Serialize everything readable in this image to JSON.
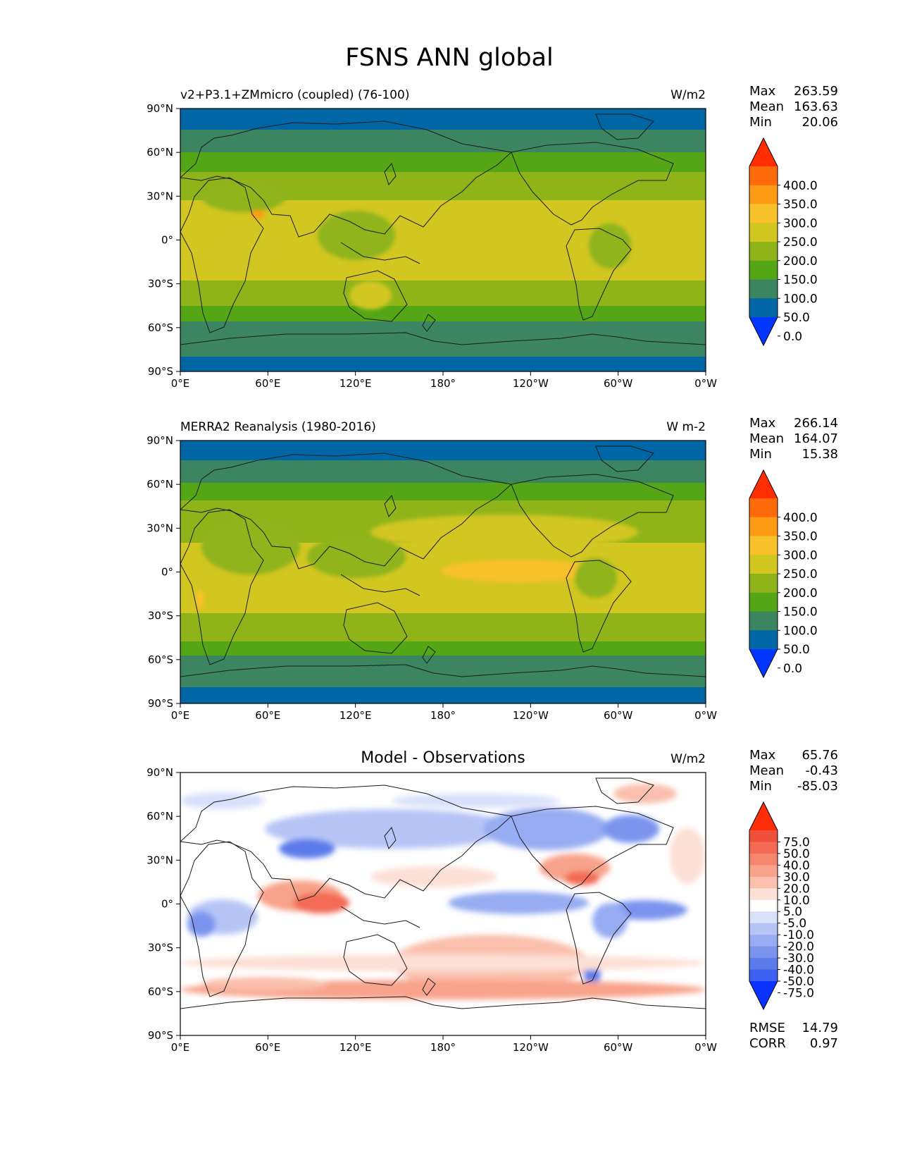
{
  "title": "FSNS ANN global",
  "longitude_ticks": [
    "0°E",
    "60°E",
    "120°E",
    "180°",
    "120°W",
    "60°W",
    "0°W"
  ],
  "latitude_ticks": [
    "90°N",
    "60°N",
    "30°N",
    "0°",
    "30°S",
    "60°S",
    "90°S"
  ],
  "stat_labels": {
    "max": "Max",
    "mean": "Mean",
    "min": "Min",
    "rmse": "RMSE",
    "corr": "CORR"
  },
  "panels": [
    {
      "left_title": "v2+P3.1+ZMmicro (coupled) (76-100)",
      "center_title": "",
      "units": "W/m2",
      "stats": {
        "max": "263.59",
        "mean": "163.63",
        "min": "20.06"
      },
      "colorbar": {
        "labels": [
          "400.0",
          "350.0",
          "300.0",
          "250.0",
          "200.0",
          "150.0",
          "100.0",
          "50.0",
          "0.0"
        ],
        "colors": [
          "#ff2d00",
          "#ff6a0a",
          "#ff9a14",
          "#f8c12c",
          "#d2c621",
          "#8fb41a",
          "#55a616",
          "#3b8561",
          "#0066a6",
          "#0036ff"
        ]
      }
    },
    {
      "left_title": "MERRA2 Reanalysis (1980-2016)",
      "center_title": "",
      "units": "W m-2",
      "stats": {
        "max": "266.14",
        "mean": "164.07",
        "min": "15.38"
      },
      "colorbar": {
        "labels": [
          "400.0",
          "350.0",
          "300.0",
          "250.0",
          "200.0",
          "150.0",
          "100.0",
          "50.0",
          "0.0"
        ],
        "colors": [
          "#ff2d00",
          "#ff6a0a",
          "#ff9a14",
          "#f8c12c",
          "#d2c621",
          "#8fb41a",
          "#55a616",
          "#3b8561",
          "#0066a6",
          "#0036ff"
        ]
      }
    },
    {
      "left_title": "",
      "center_title": "Model - Observations",
      "units": "W/m2",
      "stats": {
        "max": "65.76",
        "mean": "-0.43",
        "min": "-85.03",
        "rmse": "14.79",
        "corr": "0.97"
      },
      "colorbar": {
        "labels": [
          "75.0",
          "50.0",
          "40.0",
          "30.0",
          "20.0",
          "10.0",
          "5.0",
          "-5.0",
          "-10.0",
          "-20.0",
          "-30.0",
          "-40.0",
          "-50.0",
          "-75.0"
        ],
        "colors": [
          "#ff2c08",
          "#f04f3a",
          "#f36b55",
          "#f6876f",
          "#f8a38b",
          "#fac0ad",
          "#fde0d6",
          "#ffffff",
          "#d8e0fa",
          "#b6c5f6",
          "#97acf2",
          "#7a94ee",
          "#5c7beb",
          "#3d5ff2",
          "#0a32ff"
        ]
      }
    }
  ]
}
